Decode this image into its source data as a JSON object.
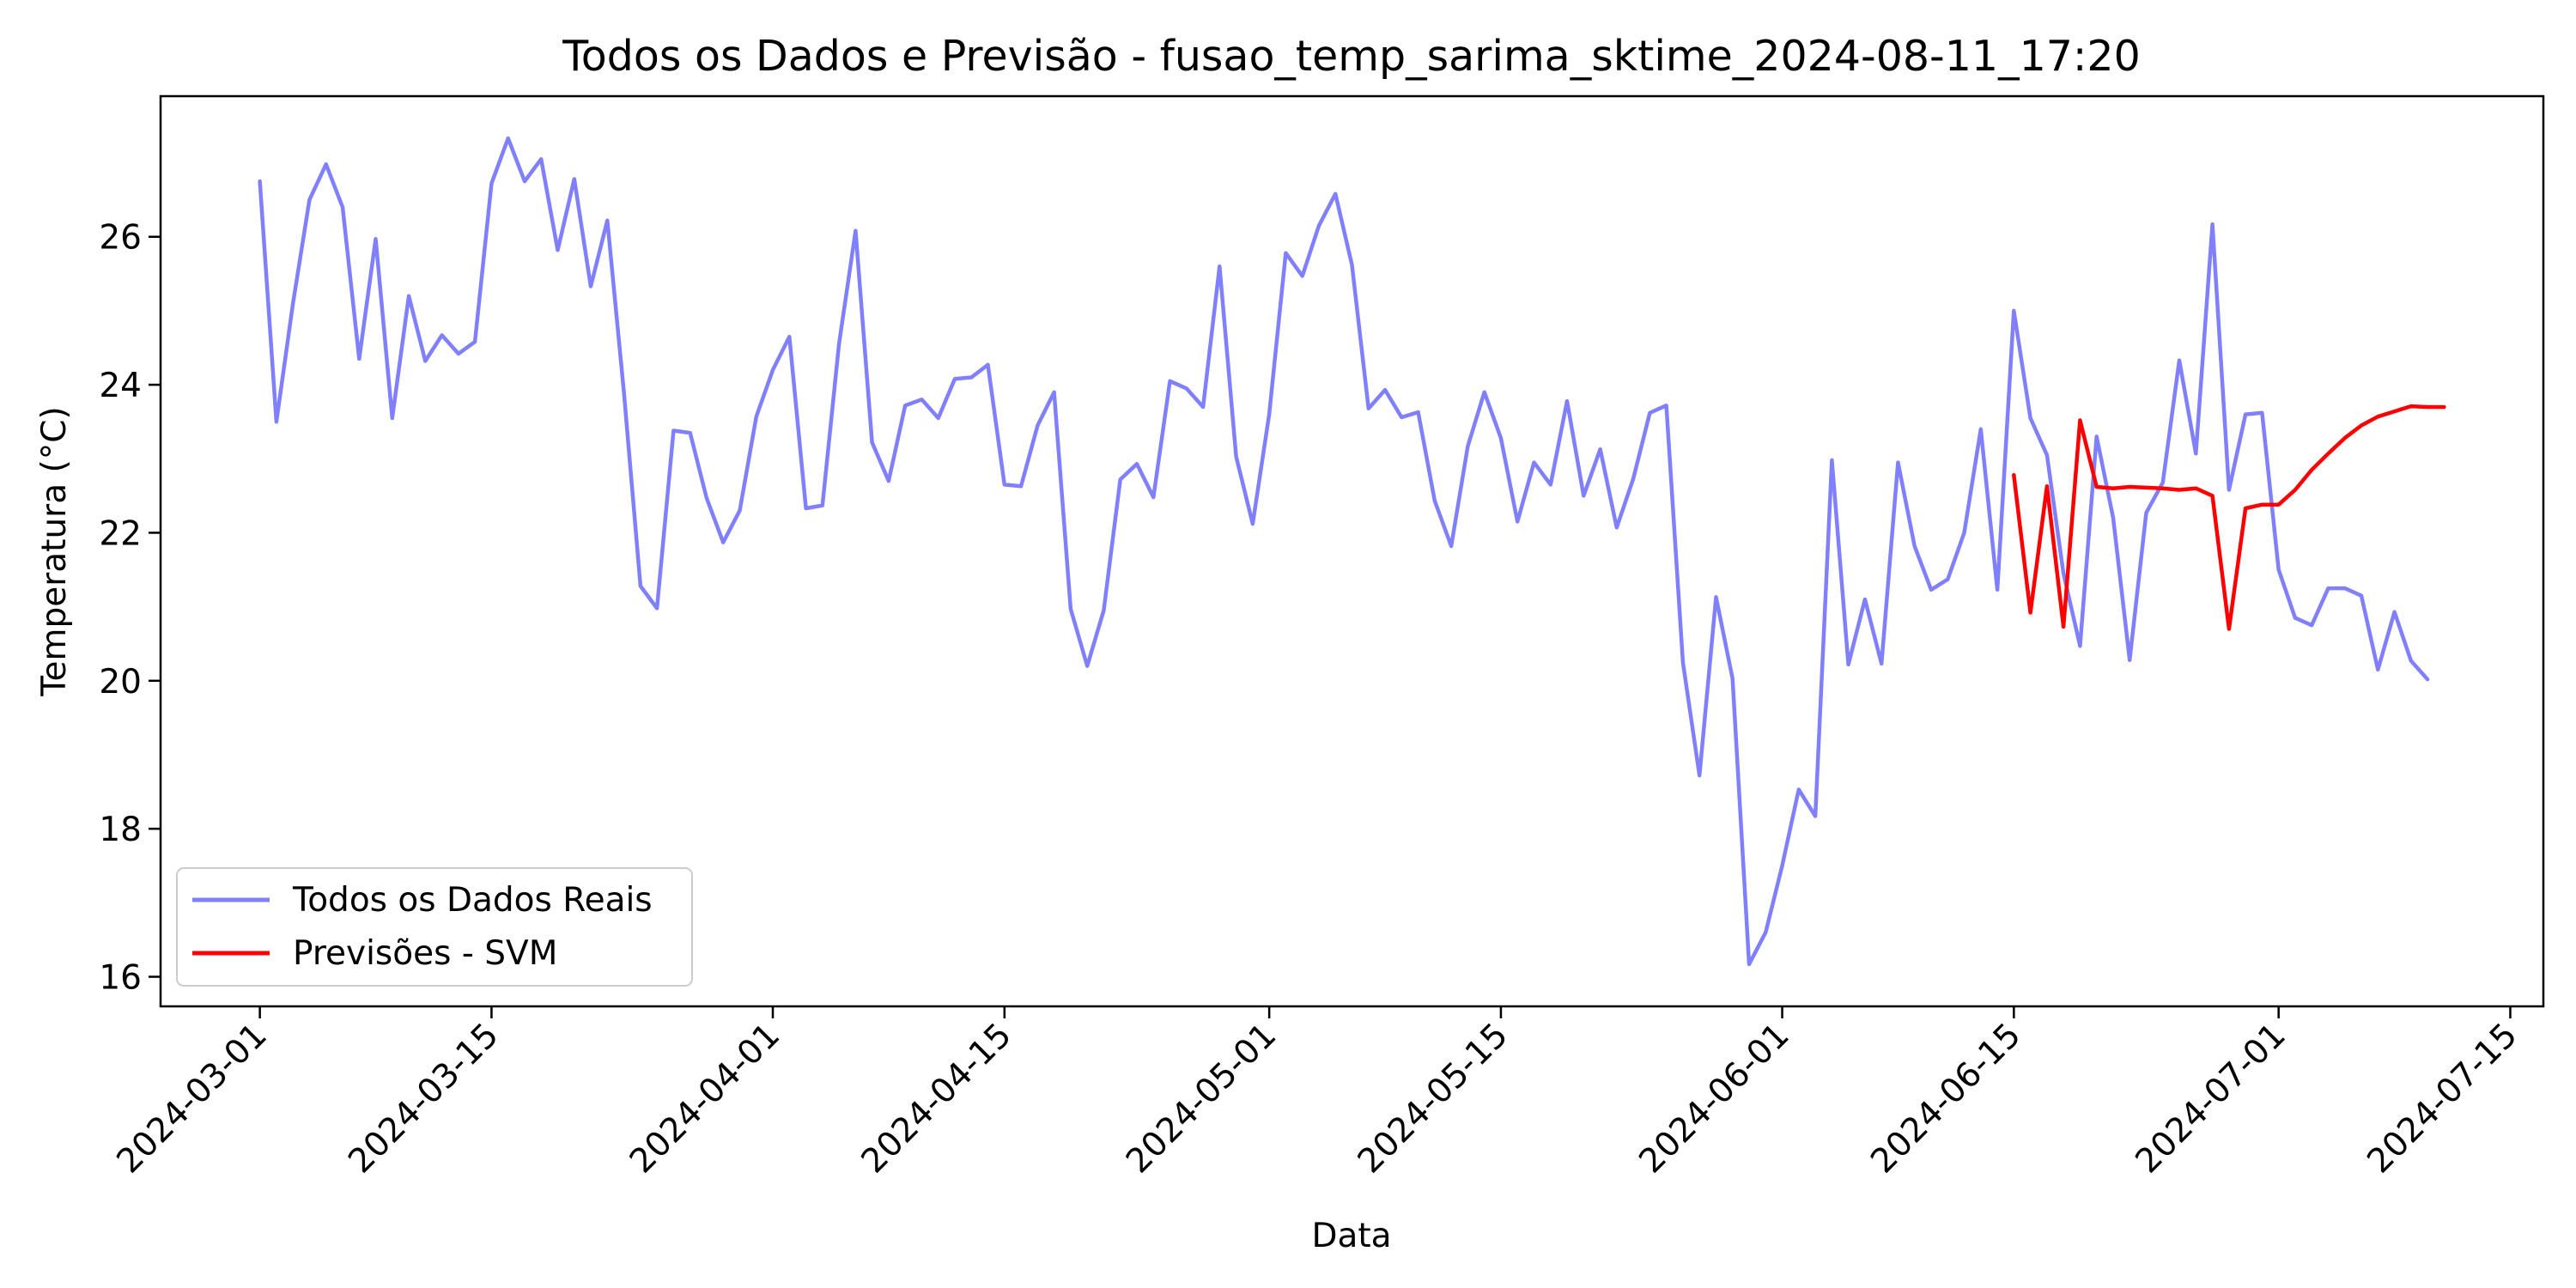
{
  "chart_data": {
    "type": "line",
    "title": "Todos os Dados e Previsão - fusao_temp_sarima_sktime_2024-08-11_17:20",
    "xlabel": "Data",
    "ylabel": "Temperatura (°C)",
    "xlim": [
      "2024-02-24",
      "2024-07-17"
    ],
    "ylim": [
      15.6,
      27.9
    ],
    "x_ticks": [
      "2024-03-01",
      "2024-03-15",
      "2024-04-01",
      "2024-04-15",
      "2024-05-01",
      "2024-05-15",
      "2024-06-01",
      "2024-06-15",
      "2024-07-01",
      "2024-07-15"
    ],
    "y_ticks": [
      16,
      18,
      20,
      22,
      24,
      26
    ],
    "grid": false,
    "legend_position": "lower left",
    "series": [
      {
        "name": "Todos os Dados Reais",
        "color": "#8080ff",
        "start_date": "2024-03-01",
        "values": [
          26.75,
          23.5,
          25.1,
          26.5,
          26.98,
          26.4,
          24.35,
          25.97,
          23.55,
          25.2,
          24.32,
          24.67,
          24.42,
          24.58,
          26.72,
          27.33,
          26.75,
          27.05,
          25.82,
          26.78,
          25.33,
          26.22,
          23.9,
          21.28,
          20.98,
          23.38,
          23.35,
          22.47,
          21.87,
          22.3,
          23.57,
          24.2,
          24.65,
          22.33,
          22.37,
          24.55,
          26.08,
          23.22,
          22.7,
          23.72,
          23.8,
          23.55,
          24.08,
          24.1,
          24.27,
          22.65,
          22.63,
          23.45,
          23.9,
          20.97,
          20.2,
          20.95,
          22.72,
          22.93,
          22.48,
          24.05,
          23.95,
          23.7,
          25.6,
          23.03,
          22.12,
          23.6,
          25.78,
          25.47,
          26.15,
          26.58,
          25.62,
          23.68,
          23.93,
          23.56,
          23.63,
          22.43,
          21.82,
          23.17,
          23.9,
          23.28,
          22.15,
          22.95,
          22.65,
          23.78,
          22.5,
          23.13,
          22.07,
          22.73,
          23.62,
          23.72,
          20.25,
          18.72,
          21.13,
          20.03,
          16.17,
          16.6,
          17.5,
          18.53,
          18.17,
          22.98,
          20.22,
          21.1,
          20.23,
          22.95,
          21.82,
          21.23,
          21.37,
          22.0,
          23.4,
          21.23,
          25.0,
          23.55,
          23.05,
          21.45,
          20.47,
          23.3,
          22.2,
          20.28,
          22.27,
          22.68,
          24.33,
          23.07,
          26.17,
          22.58,
          23.6,
          23.62,
          21.5,
          20.85,
          20.75,
          21.25,
          21.25,
          21.15,
          20.15,
          20.93,
          20.27,
          20.02
        ]
      },
      {
        "name": "Previsões - SVM",
        "color": "#ff0000",
        "start_date": "2024-06-15",
        "values": [
          22.78,
          20.92,
          22.63,
          20.73,
          23.52,
          22.62,
          22.6,
          22.62,
          22.61,
          22.6,
          22.58,
          22.6,
          22.5,
          20.7,
          22.33,
          22.38,
          22.38,
          22.58,
          22.85,
          23.07,
          23.28,
          23.45,
          23.57,
          23.64,
          23.71,
          23.7,
          23.7
        ]
      }
    ]
  }
}
